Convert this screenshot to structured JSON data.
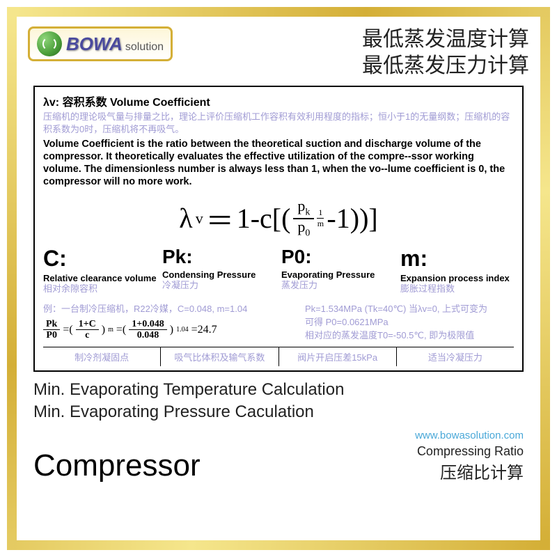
{
  "header": {
    "logo_brand": "BOWA",
    "logo_sub": "solution",
    "title_cn_line1": "最低蒸发温度计算",
    "title_cn_line2": "最低蒸发压力计算"
  },
  "definition": {
    "label_zh": "λv: 容积系数  Volume Coefficient",
    "desc_zh": "压缩机的理论吸气量与排量之比，理论上评价压缩机工作容积有效利用程度的指标；恒小于1的无量纲数；压缩机的容积系数为0时，压缩机将不再吸气。",
    "desc_en": "Volume Coefficient is the ratio between the theoretical suction and discharge volume of the compressor. It theoretically evaluates the effective utilization of the compre--ssor working volume. The dimensionless number is always less than 1, when the vo--lume coefficient is 0, the compressor will no more work."
  },
  "formula": {
    "lhs_symbol": "λ",
    "lhs_sub": "v",
    "equals": "＝",
    "text_1": "1-c[(",
    "frac_num": "p",
    "frac_num_sub": "k",
    "frac_den": "p",
    "frac_den_sub": "0",
    "sup_num": "1",
    "sup_den": "m",
    "text_2": "-1))]"
  },
  "variables": [
    {
      "sym": "C:",
      "en": "Relative clearance volume",
      "zh": "相对余隙容积"
    },
    {
      "sym": "Pk:",
      "en": "Condensing Pressure",
      "zh": "冷凝压力"
    },
    {
      "sym": "P0:",
      "en": "Evaporating Pressure",
      "zh": "蒸发压力"
    },
    {
      "sym": "m:",
      "en": "Expansion process index",
      "zh": "膨胀过程指数"
    }
  ],
  "example": {
    "left_label": "例：一台制冷压缩机，R22冷媒，C=0.048,    m=1.04",
    "right_line0": "Pk=1.534MPa (Tk=40℃) 当λv=0, 上式可变为",
    "right_line1": "可得 P0=0.0621MPa",
    "right_line2": "相对应的蒸发温度T0=-50.5℃, 即为极限值",
    "formula_lhs_num": "Pk",
    "formula_lhs_den": "P0",
    "formula_mid_num": "1+C",
    "formula_mid_den": "c",
    "formula_exp": "m",
    "formula_val_num": "1+0.048",
    "formula_val_den": "0.048",
    "formula_val_exp": "1.04",
    "formula_result": "=24.7"
  },
  "bottom_cells": [
    "制冷剂凝固点",
    "吸气比体积及输气系数",
    "阀片开启压差15kPa",
    "适当冷凝压力"
  ],
  "below": {
    "en_line1": "Min. Evaporating Temperature Calculation",
    "en_line2": "Min. Evaporating Pressure Caculation"
  },
  "url": "www.bowasolution.com",
  "footer": {
    "compressor": "Compressor",
    "ratio_en": "Compressing Ratio",
    "ratio_zh": "压缩比计算"
  },
  "colors": {
    "gold": "#d4af37",
    "purple_text": "#a09bd4",
    "link": "#4aa8d8"
  }
}
